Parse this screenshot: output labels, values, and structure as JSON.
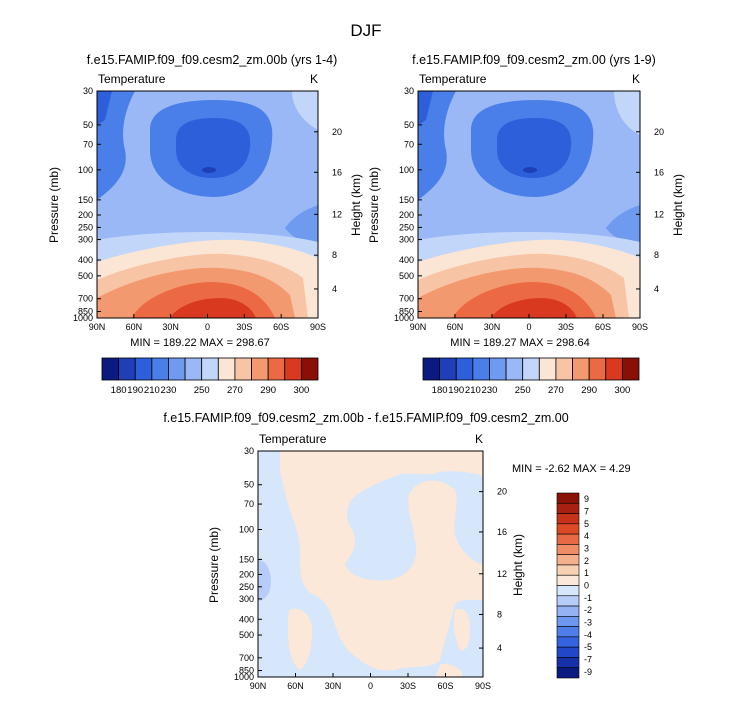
{
  "figure": {
    "title": "DJF"
  },
  "colors": {
    "blue_red_13": [
      "#0a1a80",
      "#1f3fb8",
      "#2d5fdb",
      "#4a7ee8",
      "#6e9af0",
      "#99b8f5",
      "#c2d6fa",
      "#fbe6d6",
      "#f8c4a6",
      "#f3996f",
      "#ec6a43",
      "#d93a1f",
      "#8a0f07"
    ],
    "diff_18": [
      "#0a1a80",
      "#1530a8",
      "#2148c9",
      "#3563e0",
      "#4f7ee8",
      "#6e98f0",
      "#93b3f5",
      "#b5cdf8",
      "#d6e6fb",
      "#fbe8d8",
      "#f8d0b4",
      "#f4b08c",
      "#ef8c65",
      "#e86a43",
      "#de4a26",
      "#c7321a",
      "#a8200f",
      "#8a1208"
    ]
  },
  "chart_data": [
    {
      "type": "heatmap",
      "title": "f.e15.FAMIP.f09_f09.cesm2_zm.00b (yrs 1-4)",
      "left_label": "Temperature",
      "units": "K",
      "ylabel": "Pressure (mb)",
      "ylabel_right": "Height (km)",
      "x_ticks": [
        "90N",
        "60N",
        "30N",
        "0",
        "30S",
        "60S",
        "90S"
      ],
      "y_ticks": [
        "30",
        "50",
        "70",
        "100",
        "150",
        "200",
        "250",
        "300",
        "400",
        "500",
        "700",
        "850",
        "1000"
      ],
      "y_ticks_right": [
        "20",
        "16",
        "12",
        "8",
        "4"
      ],
      "min_max_text": "MIN = 189.22   MAX = 298.67",
      "min": 189.22,
      "max": 298.67,
      "colorbar_labels": [
        "180",
        "190",
        "210",
        "230",
        "250",
        "270",
        "290",
        "300"
      ]
    },
    {
      "type": "heatmap",
      "title": "f.e15.FAMIP.f09_f09.cesm2_zm.00 (yrs 1-9)",
      "left_label": "Temperature",
      "units": "K",
      "ylabel": "Pressure (mb)",
      "ylabel_right": "Height (km)",
      "x_ticks": [
        "90N",
        "60N",
        "30N",
        "0",
        "30S",
        "60S",
        "90S"
      ],
      "y_ticks": [
        "30",
        "50",
        "70",
        "100",
        "150",
        "200",
        "250",
        "300",
        "400",
        "500",
        "700",
        "850",
        "1000"
      ],
      "y_ticks_right": [
        "20",
        "16",
        "12",
        "8",
        "4"
      ],
      "min_max_text": "MIN = 189.27   MAX = 298.64",
      "min": 189.27,
      "max": 298.64,
      "colorbar_labels": [
        "180",
        "190",
        "210",
        "230",
        "250",
        "270",
        "290",
        "300"
      ]
    },
    {
      "type": "heatmap",
      "title": "f.e15.FAMIP.f09_f09.cesm2_zm.00b - f.e15.FAMIP.f09_f09.cesm2_zm.00",
      "left_label": "Temperature",
      "units": "K",
      "ylabel": "Pressure (mb)",
      "ylabel_right": "Height (km)",
      "x_ticks": [
        "90N",
        "60N",
        "30N",
        "0",
        "30S",
        "60S",
        "90S"
      ],
      "y_ticks": [
        "30",
        "50",
        "70",
        "100",
        "150",
        "200",
        "250",
        "300",
        "400",
        "500",
        "700",
        "850",
        "1000"
      ],
      "y_ticks_right": [
        "20",
        "16",
        "12",
        "8",
        "4"
      ],
      "min_max_text": "MIN =  -2.62   MAX =   4.29",
      "min": -2.62,
      "max": 4.29,
      "colorbar_labels": [
        "9",
        "7",
        "5",
        "4",
        "3",
        "2",
        "1",
        "0",
        "-1",
        "-2",
        "-3",
        "-4",
        "-5",
        "-7",
        "-9"
      ]
    }
  ]
}
